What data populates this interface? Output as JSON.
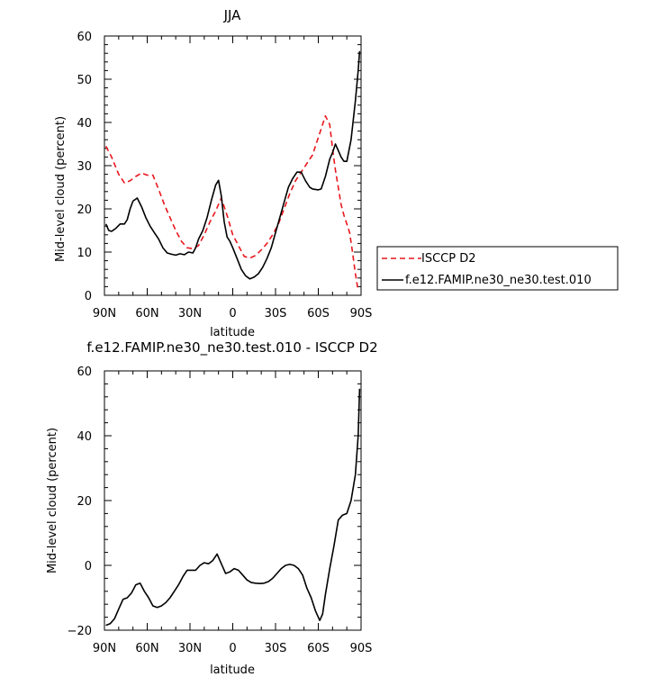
{
  "chart_data": [
    {
      "type": "line",
      "title": "JJA",
      "xlabel": "latitude",
      "ylabel": "Mid-level cloud (percent)",
      "xlim": [
        -90,
        90
      ],
      "ylim": [
        0,
        60
      ],
      "x_ticks": [
        -90,
        -60,
        -30,
        0,
        30,
        60,
        90
      ],
      "x_tick_labels": [
        "90N",
        "60N",
        "30N",
        "0",
        "30S",
        "60S",
        "90S"
      ],
      "y_ticks": [
        0,
        10,
        20,
        30,
        40,
        50,
        60
      ],
      "y_tick_labels": [
        "0",
        "10",
        "20",
        "30",
        "40",
        "50",
        "60"
      ],
      "legend_position": "right",
      "series": [
        {
          "name": "ISCCP D2",
          "color": "#e8171e",
          "style": "dashed",
          "x": [
            -89,
            -85,
            -80,
            -76,
            -72,
            -68,
            -64,
            -60,
            -56,
            -52,
            -48,
            -44,
            -40,
            -36,
            -32,
            -28,
            -24,
            -20,
            -16,
            -12,
            -8,
            -4,
            0,
            4,
            8,
            12,
            16,
            20,
            24,
            28,
            32,
            36,
            40,
            44,
            48,
            52,
            56,
            58,
            62,
            65,
            68,
            70,
            72,
            74,
            76,
            78,
            80,
            82,
            84,
            86,
            88
          ],
          "y": [
            34.5,
            32,
            28,
            26,
            26.5,
            27.5,
            28.3,
            27.8,
            27.8,
            24.5,
            21,
            18,
            15,
            12.5,
            11,
            10.8,
            11.5,
            14,
            17,
            19.5,
            22.5,
            18.5,
            14,
            11.5,
            9,
            8.6,
            9.2,
            10.5,
            12,
            14,
            16.5,
            20,
            23.5,
            26.5,
            28.5,
            30.5,
            32.5,
            34.5,
            38.5,
            41.5,
            39.5,
            34,
            29,
            25,
            21,
            18.5,
            16.5,
            14.5,
            10,
            5,
            1
          ]
        },
        {
          "name": "f.e12.FAMIP.ne30_ne30.test.010",
          "color": "#000000",
          "style": "solid",
          "x": [
            -89,
            -87,
            -85,
            -82,
            -79,
            -76,
            -74,
            -72,
            -70,
            -67,
            -64,
            -61,
            -58,
            -55,
            -52,
            -49,
            -46,
            -43,
            -40,
            -37,
            -34,
            -31,
            -28,
            -26,
            -24,
            -21,
            -18,
            -15,
            -12,
            -10,
            -8,
            -6,
            -4,
            -2,
            0,
            3,
            6,
            9,
            12,
            15,
            18,
            21,
            24,
            27,
            30,
            33,
            36,
            39,
            42,
            45,
            48,
            51,
            54,
            56,
            58,
            60,
            62,
            65,
            68,
            70,
            72,
            74,
            76,
            78,
            80,
            83,
            86,
            88,
            89
          ],
          "y": [
            16.5,
            15,
            14.8,
            15.5,
            16.5,
            16.5,
            17.5,
            20,
            21.8,
            22.5,
            20.5,
            18,
            16,
            14.5,
            13,
            11,
            9.8,
            9.5,
            9.3,
            9.6,
            9.4,
            10,
            9.8,
            11,
            13,
            15,
            18,
            22,
            25.5,
            26.6,
            23,
            17,
            13.5,
            12.5,
            11,
            8.5,
            6,
            4.5,
            3.8,
            4.2,
            5,
            6.5,
            8.5,
            11,
            14.5,
            18,
            21.5,
            25,
            27,
            28.5,
            28.5,
            26.5,
            25,
            24.6,
            24.5,
            24.4,
            24.6,
            27.5,
            31.5,
            33,
            35,
            33.5,
            32,
            31,
            31,
            36,
            45,
            52,
            56.5
          ]
        }
      ]
    },
    {
      "type": "line",
      "title": "f.e12.FAMIP.ne30_ne30.test.010 - ISCCP D2",
      "xlabel": "latitude",
      "ylabel": "Mid-level cloud (percent)",
      "xlim": [
        -90,
        90
      ],
      "ylim": [
        -20,
        60
      ],
      "x_ticks": [
        -90,
        -60,
        -30,
        0,
        30,
        60,
        90
      ],
      "x_tick_labels": [
        "90N",
        "60N",
        "30N",
        "0",
        "30S",
        "60S",
        "90S"
      ],
      "y_ticks": [
        -20,
        0,
        20,
        40,
        60
      ],
      "y_tick_labels": [
        "−20",
        "0",
        "20",
        "40",
        "60"
      ],
      "series": [
        {
          "color": "#000000",
          "style": "solid",
          "x": [
            -89,
            -86,
            -83,
            -80,
            -77,
            -74,
            -71,
            -68,
            -65,
            -62,
            -59,
            -56,
            -53,
            -50,
            -47,
            -44,
            -41,
            -38,
            -35,
            -32,
            -29,
            -26,
            -23,
            -20,
            -17,
            -14,
            -11,
            -8,
            -5,
            -2,
            1,
            4,
            7,
            10,
            13,
            16,
            19,
            22,
            25,
            28,
            31,
            34,
            37,
            40,
            43,
            46,
            49,
            52,
            55,
            58,
            61,
            63,
            65,
            68,
            71,
            74,
            77,
            80,
            83,
            86,
            88,
            89
          ],
          "y": [
            -18.5,
            -18,
            -16.5,
            -13.5,
            -10.5,
            -10,
            -8.5,
            -6,
            -5.5,
            -8,
            -10,
            -12.5,
            -13,
            -12.5,
            -11.5,
            -10,
            -8,
            -6,
            -3.5,
            -1.5,
            -1.5,
            -1.5,
            0,
            0.8,
            0.5,
            1.5,
            3.5,
            0.5,
            -2.5,
            -2,
            -1,
            -1.5,
            -3,
            -4.5,
            -5.3,
            -5.5,
            -5.6,
            -5.5,
            -5,
            -4,
            -2.5,
            -1,
            0,
            0.3,
            0,
            -1,
            -3,
            -7,
            -10,
            -14,
            -17,
            -15,
            -9,
            -1,
            6,
            14,
            15.5,
            16,
            20,
            28,
            40,
            54.5
          ]
        }
      ]
    }
  ]
}
